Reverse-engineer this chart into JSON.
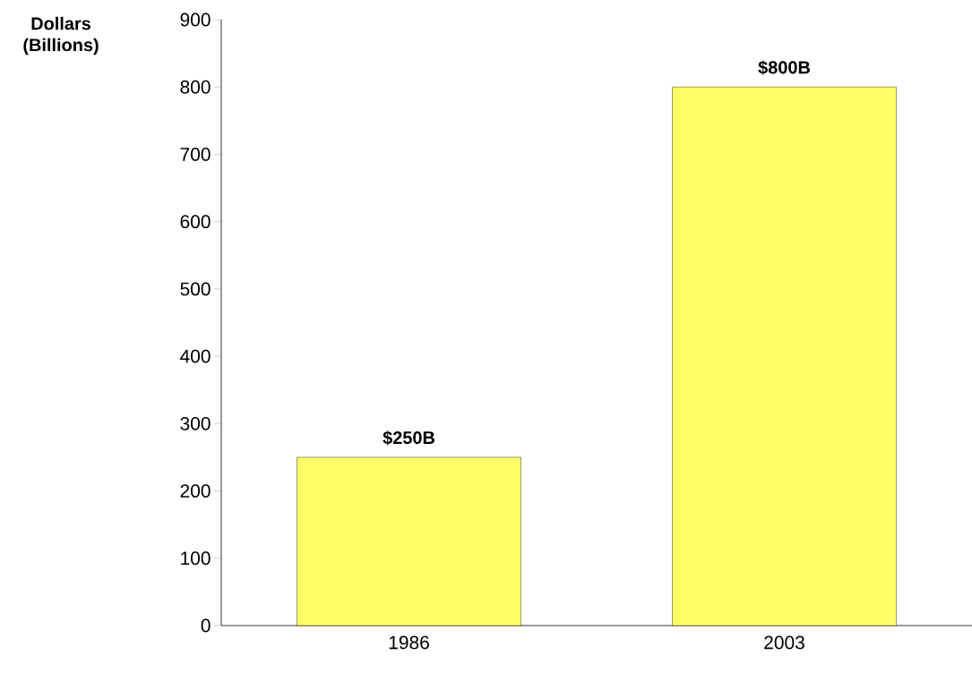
{
  "chart_data": {
    "type": "bar",
    "ylabel": "Dollars (Billions)",
    "categories": [
      "1986",
      "2003"
    ],
    "values": [
      250,
      800
    ],
    "value_labels": [
      "$250B",
      "$800B"
    ],
    "color": "#ffff66",
    "ylim": [
      0,
      900
    ],
    "yticks": [
      0,
      100,
      200,
      300,
      400,
      500,
      600,
      700,
      800,
      900
    ],
    "grid": false
  }
}
